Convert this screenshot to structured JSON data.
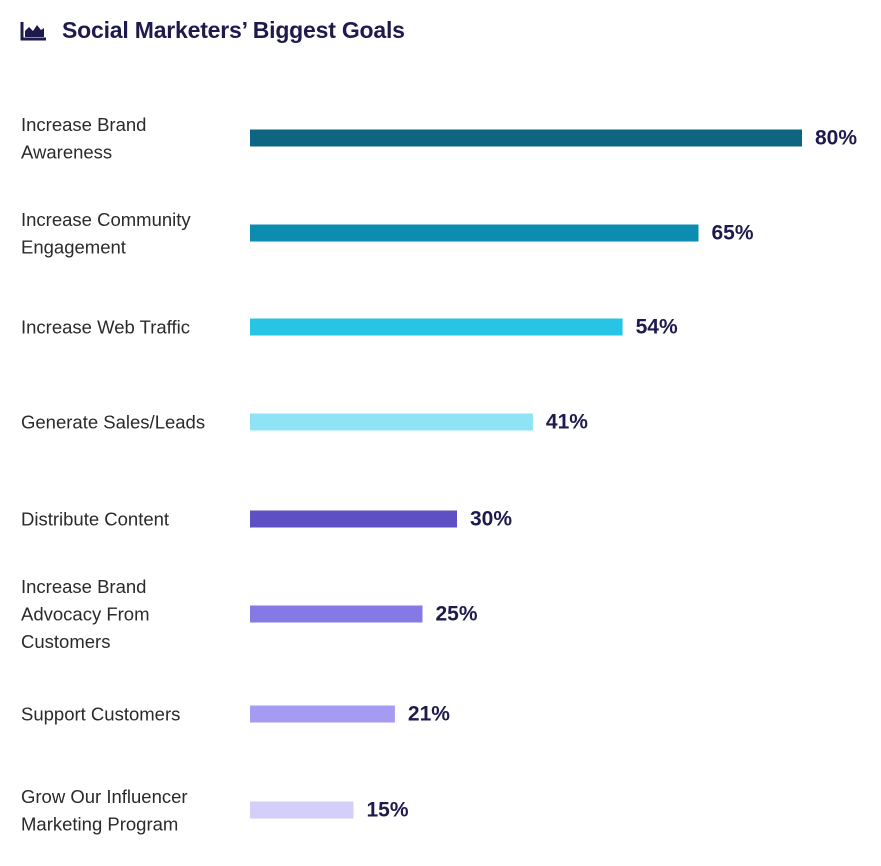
{
  "header": {
    "title": "Social Marketers’ Biggest Goals",
    "icon": "area-chart-icon"
  },
  "chart_data": {
    "type": "bar",
    "orientation": "horizontal",
    "title": "Social Marketers’ Biggest Goals",
    "value_suffix": "%",
    "xlim": [
      0,
      100
    ],
    "grid": false,
    "legend": "none",
    "categories": [
      [
        "Increase Brand",
        "Awareness"
      ],
      [
        "Increase Community",
        "Engagement"
      ],
      [
        "Increase Web Traffic"
      ],
      [
        "Generate Sales/Leads"
      ],
      [
        "Distribute Content"
      ],
      [
        "Increase Brand",
        "Advocacy From",
        "Customers"
      ],
      [
        "Support Customers"
      ],
      [
        "Grow Our Influencer",
        "Marketing Program"
      ]
    ],
    "values": [
      80,
      65,
      54,
      41,
      30,
      25,
      21,
      15
    ],
    "colors": [
      "#0e6582",
      "#0c8db0",
      "#27c4e6",
      "#8ee3f5",
      "#5e4fc4",
      "#8579e6",
      "#a69bf3",
      "#d4cffa"
    ]
  }
}
